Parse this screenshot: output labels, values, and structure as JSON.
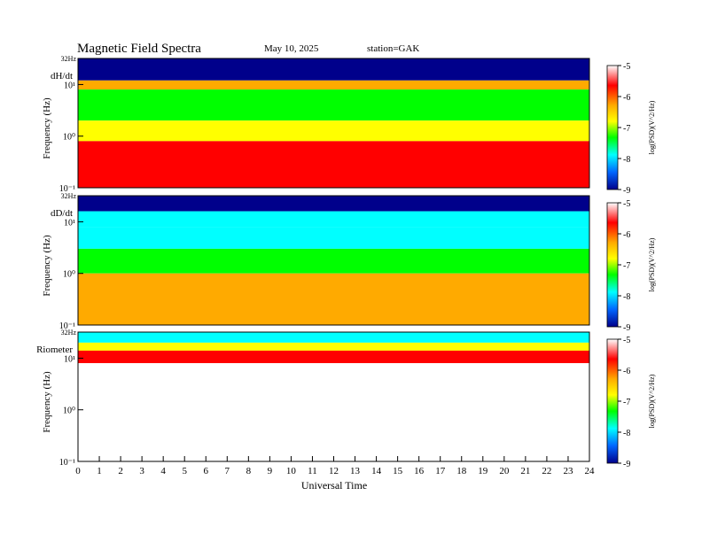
{
  "header": {
    "title": "Magnetic  Field  Spectra",
    "date": "May 10, 2025",
    "station": "station=GAK"
  },
  "chart_data": {
    "type": "heatmap",
    "xlabel": "Universal Time",
    "xlim": [
      0,
      24
    ],
    "x_ticks": [
      "0",
      "1",
      "2",
      "3",
      "4",
      "5",
      "6",
      "7",
      "8",
      "9",
      "10",
      "11",
      "12",
      "13",
      "14",
      "15",
      "16",
      "17",
      "18",
      "19",
      "20",
      "21",
      "22",
      "23",
      "24"
    ],
    "y_scale": "log",
    "ylim_hz": [
      0.1,
      32
    ],
    "colorbar": {
      "label": "log(PSD)(V^2/Hz)",
      "ticks": [
        "-5",
        "-6",
        "-7",
        "-8",
        "-9"
      ],
      "range": [
        -9,
        -5
      ],
      "colors": [
        "#ffffff",
        "#ff0000",
        "#ffaa00",
        "#ffff00",
        "#00ff00",
        "#00ffff",
        "#0066ff",
        "#00008b"
      ]
    },
    "panels": [
      {
        "name": "dH/dt",
        "ylabel": "Frequency  (Hz)",
        "y_ticks": [
          "10¹",
          "10⁰",
          "10⁻¹"
        ],
        "top_label": "32Hz",
        "bands": [
          {
            "f_lo": 12,
            "f_hi": 32,
            "level": -8.8
          },
          {
            "f_lo": 8,
            "f_hi": 12,
            "level": -6.2
          },
          {
            "f_lo": 2,
            "f_hi": 8,
            "level": -7.3
          },
          {
            "f_lo": 0.8,
            "f_hi": 2,
            "level": -6.5
          },
          {
            "f_lo": 0.1,
            "f_hi": 0.8,
            "level": -5.8
          }
        ]
      },
      {
        "name": "dD/dt",
        "ylabel": "Frequency  (Hz)",
        "y_ticks": [
          "10¹",
          "10⁰",
          "10⁻¹"
        ],
        "top_label": "32Hz",
        "bands": [
          {
            "f_lo": 16,
            "f_hi": 32,
            "level": -8.9
          },
          {
            "f_lo": 8,
            "f_hi": 16,
            "level": -7.8
          },
          {
            "f_lo": 3,
            "f_hi": 8,
            "level": -7.9
          },
          {
            "f_lo": 1,
            "f_hi": 3,
            "level": -7.0
          },
          {
            "f_lo": 0.1,
            "f_hi": 1,
            "level": -5.9
          }
        ]
      },
      {
        "name": "Riometer",
        "ylabel": "Frequency  (Hz)",
        "y_ticks": [
          "10¹",
          "10⁰",
          "10⁻¹"
        ],
        "top_label": "32Hz",
        "bands": [
          {
            "f_lo": 20,
            "f_hi": 32,
            "level": -7.9
          },
          {
            "f_lo": 14,
            "f_hi": 20,
            "level": -6.9
          },
          {
            "f_lo": 8,
            "f_hi": 14,
            "level": -5.8
          },
          {
            "f_lo": 0.1,
            "f_hi": 8,
            "level": -5.0
          }
        ]
      }
    ]
  }
}
